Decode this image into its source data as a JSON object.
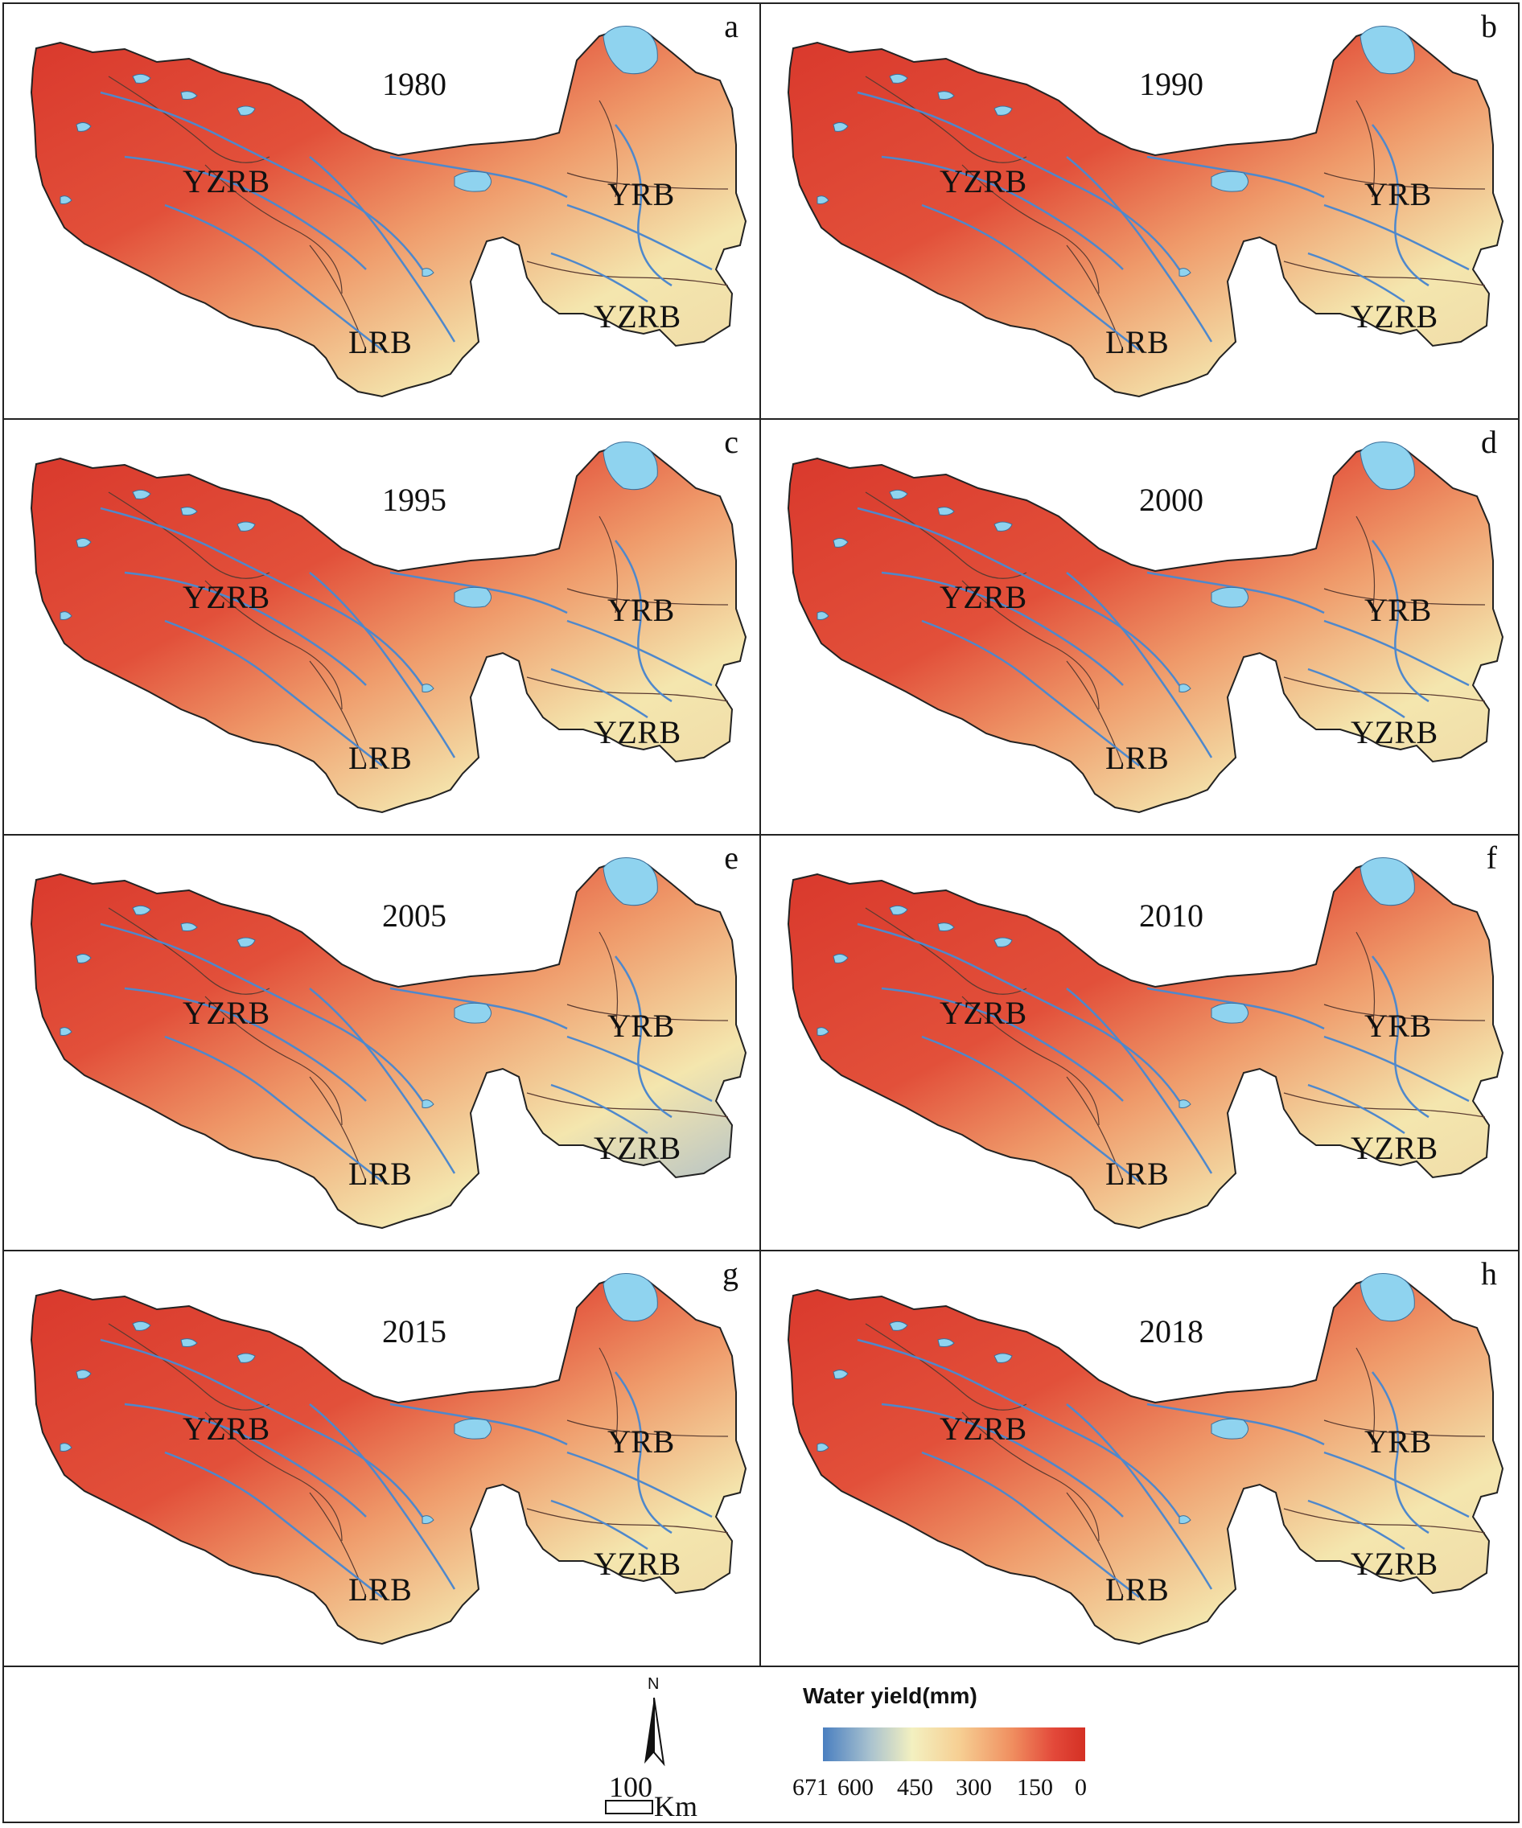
{
  "panels": [
    {
      "letter": "a",
      "year": "1980"
    },
    {
      "letter": "b",
      "year": "1990"
    },
    {
      "letter": "c",
      "year": "1995"
    },
    {
      "letter": "d",
      "year": "2000"
    },
    {
      "letter": "e",
      "year": "2005"
    },
    {
      "letter": "f",
      "year": "2010"
    },
    {
      "letter": "g",
      "year": "2015"
    },
    {
      "letter": "h",
      "year": "2018"
    }
  ],
  "basin_labels": {
    "west_main": "YZRB",
    "east_north": "YRB",
    "south_center": "LRB",
    "east_south": "YZRB"
  },
  "legend": {
    "title": "Water yield(mm)",
    "ticks": [
      "671",
      "600",
      "450",
      "300",
      "150",
      "0"
    ],
    "colors": {
      "high": "#4a7fc0",
      "mid": "#f3f0c0",
      "low": "#d43024"
    }
  },
  "scale_bar": {
    "value": "100",
    "unit": "Km"
  },
  "north_arrow": {
    "label": "N",
    "icon": "north-arrow-icon"
  },
  "map_colors": {
    "dry": "#d9382c",
    "wet": "#f4e6ae",
    "lake": "#8fd3ef",
    "river": "#4e88cc"
  }
}
